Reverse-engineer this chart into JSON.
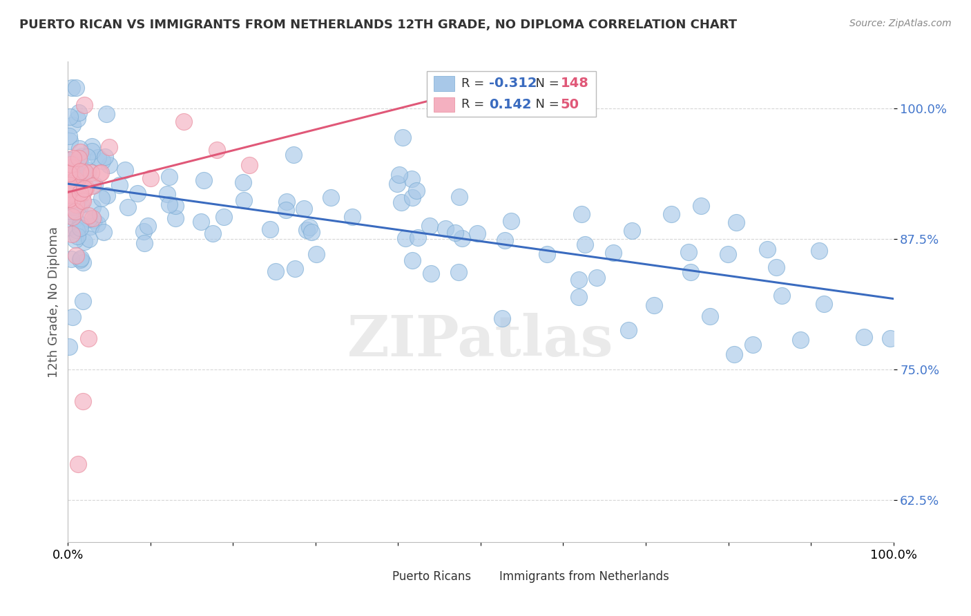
{
  "title": "PUERTO RICAN VS IMMIGRANTS FROM NETHERLANDS 12TH GRADE, NO DIPLOMA CORRELATION CHART",
  "source": "Source: ZipAtlas.com",
  "ylabel": "12th Grade, No Diploma",
  "y_tick_labels": [
    "62.5%",
    "75.0%",
    "87.5%",
    "100.0%"
  ],
  "y_tick_values": [
    0.625,
    0.75,
    0.875,
    1.0
  ],
  "x_lim": [
    0.0,
    1.0
  ],
  "y_lim": [
    0.585,
    1.045
  ],
  "blue_label": "Puerto Ricans",
  "pink_label": "Immigrants from Netherlands",
  "blue_R": -0.312,
  "blue_N": 148,
  "pink_R": 0.142,
  "pink_N": 50,
  "blue_color": "#a8c8e8",
  "pink_color": "#f4b0c0",
  "blue_edge_color": "#7aacd4",
  "pink_edge_color": "#e8889a",
  "blue_line_color": "#3a6bbf",
  "pink_line_color": "#e05878",
  "background_color": "#ffffff",
  "grid_color": "#cccccc",
  "title_color": "#333333",
  "watermark": "ZIPatlas",
  "blue_trend_y0": 0.928,
  "blue_trend_y1": 0.818,
  "pink_trend_x0": 0.0,
  "pink_trend_x1": 0.55,
  "pink_trend_y0": 0.92,
  "pink_trend_y1": 1.03
}
